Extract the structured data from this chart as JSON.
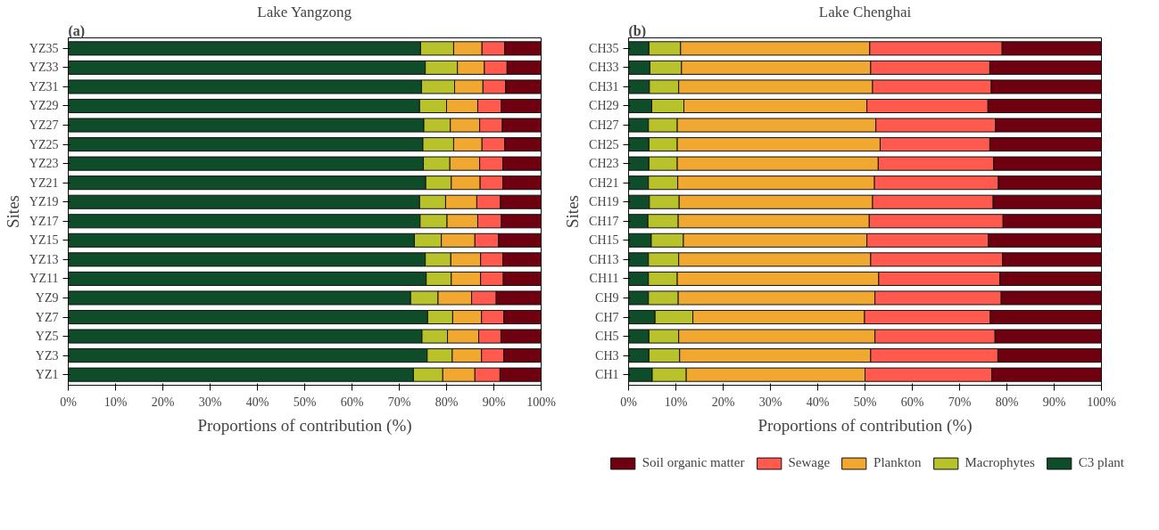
{
  "chart_data": [
    {
      "type": "bar",
      "orientation": "horizontal",
      "stacked": true,
      "title": "Lake Yangzong",
      "annotations": [
        "(a)"
      ],
      "xlabel": "Proportions of contribution (%)",
      "ylabel": "Sites",
      "legend": "bottom right",
      "grid": false,
      "xlim": [
        0,
        100
      ],
      "xticks": [
        {
          "value": 0,
          "label": "0%"
        },
        {
          "value": 10,
          "label": "10%"
        },
        {
          "value": 20,
          "label": "20%"
        },
        {
          "value": 30,
          "label": "30%"
        },
        {
          "value": 40,
          "label": "40%"
        },
        {
          "value": 50,
          "label": "50%"
        },
        {
          "value": 60,
          "label": "60%"
        },
        {
          "value": 70,
          "label": "70%"
        },
        {
          "value": 80,
          "label": "80%"
        },
        {
          "value": 90,
          "label": "90%"
        },
        {
          "value": 100,
          "label": "100%"
        }
      ],
      "categories": [
        "YZ35",
        "YZ33",
        "YZ31",
        "YZ29",
        "YZ27",
        "YZ25",
        "YZ23",
        "YZ21",
        "YZ19",
        "YZ17",
        "YZ15",
        "YZ13",
        "YZ11",
        "YZ9",
        "YZ7",
        "YZ5",
        "YZ3",
        "YZ1"
      ],
      "series": [
        {
          "name": "C3 plant",
          "color": "#0f4d2a",
          "values": [
            74.5,
            75.5,
            74.7,
            74.3,
            75.2,
            75.0,
            75.1,
            75.6,
            74.3,
            74.4,
            73.2,
            75.5,
            75.7,
            72.4,
            76.0,
            74.8,
            75.9,
            73.0
          ]
        },
        {
          "name": "Macrophytes",
          "color": "#b8c22a",
          "values": [
            7.0,
            6.8,
            7.0,
            5.7,
            5.6,
            6.5,
            5.6,
            5.4,
            5.5,
            5.7,
            5.7,
            5.4,
            5.3,
            5.8,
            5.3,
            5.4,
            5.3,
            6.2
          ]
        },
        {
          "name": "Plankton",
          "color": "#f0a830",
          "values": [
            6.0,
            5.7,
            6.0,
            6.6,
            6.2,
            6.0,
            6.3,
            6.1,
            6.6,
            6.5,
            7.1,
            6.3,
            6.2,
            7.1,
            6.1,
            6.6,
            6.2,
            6.8
          ]
        },
        {
          "name": "Sewage",
          "color": "#ff5a4d",
          "values": [
            4.8,
            4.8,
            4.8,
            5.0,
            4.8,
            4.8,
            4.9,
            4.8,
            5.0,
            5.0,
            5.0,
            4.7,
            4.8,
            5.2,
            4.7,
            4.7,
            4.7,
            5.3
          ]
        },
        {
          "name": "Soil organic matter",
          "color": "#6e0010",
          "values": [
            7.7,
            7.2,
            7.5,
            8.4,
            8.2,
            7.7,
            8.1,
            8.1,
            8.6,
            8.4,
            9.0,
            8.1,
            8.0,
            9.5,
            7.9,
            8.5,
            7.9,
            8.7
          ]
        }
      ]
    },
    {
      "type": "bar",
      "orientation": "horizontal",
      "stacked": true,
      "title": "Lake Chenghai",
      "annotations": [
        "(b)"
      ],
      "xlabel": "Proportions of contribution (%)",
      "ylabel": "Sites",
      "legend": "bottom right",
      "grid": false,
      "xlim": [
        0,
        100
      ],
      "xticks": [
        {
          "value": 0,
          "label": "0%"
        },
        {
          "value": 10,
          "label": "10%"
        },
        {
          "value": 20,
          "label": "20%"
        },
        {
          "value": 30,
          "label": "30%"
        },
        {
          "value": 40,
          "label": "40%"
        },
        {
          "value": 50,
          "label": "50%"
        },
        {
          "value": 60,
          "label": "60%"
        },
        {
          "value": 70,
          "label": "70%"
        },
        {
          "value": 80,
          "label": "80%"
        },
        {
          "value": 90,
          "label": "90%"
        },
        {
          "value": 100,
          "label": "100%"
        }
      ],
      "categories": [
        "CH35",
        "CH33",
        "CH31",
        "CH29",
        "CH27",
        "CH25",
        "CH23",
        "CH21",
        "CH19",
        "CH17",
        "CH15",
        "CH13",
        "CH11",
        "CH9",
        "CH7",
        "CH5",
        "CH3",
        "CH1"
      ],
      "series": [
        {
          "name": "C3 plant",
          "color": "#0f4d2a",
          "values": [
            4.3,
            4.5,
            4.4,
            4.9,
            4.2,
            4.3,
            4.3,
            4.2,
            4.4,
            4.1,
            4.8,
            4.2,
            4.2,
            4.2,
            5.6,
            4.3,
            4.3,
            5.0
          ]
        },
        {
          "name": "Macrophytes",
          "color": "#b8c22a",
          "values": [
            6.7,
            6.7,
            6.2,
            6.8,
            6.1,
            6.0,
            6.0,
            6.2,
            6.3,
            6.4,
            6.8,
            6.4,
            6.1,
            6.3,
            8.0,
            6.3,
            6.5,
            7.2
          ]
        },
        {
          "name": "Plankton",
          "color": "#f0a830",
          "values": [
            40.0,
            40.0,
            41.0,
            38.7,
            42.0,
            42.9,
            42.5,
            41.6,
            40.9,
            40.4,
            38.8,
            40.6,
            42.6,
            41.6,
            36.3,
            41.5,
            40.4,
            37.8
          ]
        },
        {
          "name": "Sewage",
          "color": "#ff5a4d",
          "values": [
            28.0,
            25.2,
            25.1,
            25.6,
            25.3,
            23.2,
            24.4,
            26.2,
            25.5,
            28.3,
            25.7,
            27.9,
            25.6,
            26.7,
            26.6,
            25.4,
            26.9,
            26.8
          ]
        },
        {
          "name": "Soil organic matter",
          "color": "#6e0010",
          "values": [
            21.0,
            23.6,
            23.3,
            24.0,
            22.4,
            23.6,
            22.8,
            21.8,
            22.9,
            20.8,
            23.9,
            20.9,
            21.5,
            21.2,
            23.5,
            22.5,
            21.9,
            23.2
          ]
        }
      ]
    }
  ]
}
